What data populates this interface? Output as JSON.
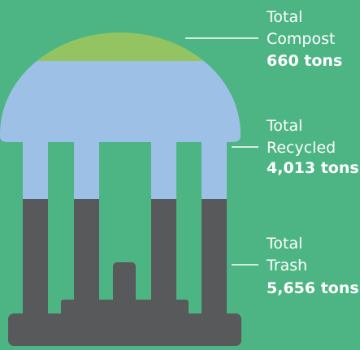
{
  "items": [
    {
      "lines": [
        "Total",
        "Compost"
      ],
      "amount": "660 tons"
    },
    {
      "lines": [
        "Total",
        "Recycled"
      ],
      "amount": "4,013 tons"
    },
    {
      "lines": [
        "Total",
        "Trash"
      ],
      "amount": "5,656 tons"
    }
  ]
}
